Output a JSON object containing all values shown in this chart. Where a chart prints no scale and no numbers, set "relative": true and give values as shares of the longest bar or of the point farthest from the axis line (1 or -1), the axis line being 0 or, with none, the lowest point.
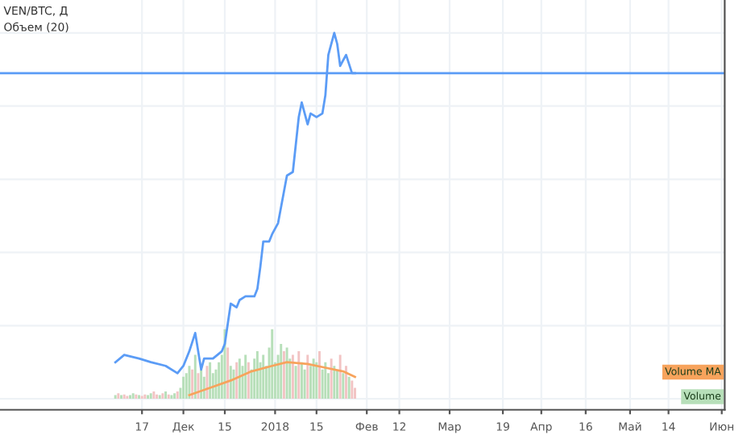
{
  "chart_data": {
    "type": "line",
    "title": "VEN/BTC, Д",
    "subtitle": "Объем (20)",
    "relative": true,
    "grid": true,
    "tick_labels": "x",
    "legend": false,
    "xlim": [
      "2017-09-30",
      "2018-06-02"
    ],
    "xticks": [
      {
        "value": "2017-11-17",
        "label": "17"
      },
      {
        "value": "2017-12-01",
        "label": "Дек"
      },
      {
        "value": "2017-12-15",
        "label": "15"
      },
      {
        "value": "2018-01-01",
        "label": "2018"
      },
      {
        "value": "2018-01-15",
        "label": "15"
      },
      {
        "value": "2018-02-01",
        "label": "Фев"
      },
      {
        "value": "2018-02-12",
        "label": "12"
      },
      {
        "value": "2018-03-01",
        "label": "Мар"
      },
      {
        "value": "2018-03-19",
        "label": "19"
      },
      {
        "value": "2018-04-01",
        "label": "Апр"
      },
      {
        "value": "2018-04-16",
        "label": "16"
      },
      {
        "value": "2018-05-01",
        "label": "Май"
      },
      {
        "value": "2018-05-14",
        "label": "14"
      },
      {
        "value": "2018-06-01",
        "label": "Июн"
      }
    ],
    "ref_lines": [
      {
        "axis": "y",
        "value": 0.89,
        "color": "#5b9cf6"
      }
    ],
    "series": [
      {
        "type": "bar",
        "name": "Volume",
        "color": "#b7dfb9",
        "x": [
          "2017-11-08",
          "2017-11-09",
          "2017-11-10",
          "2017-11-11",
          "2017-11-12",
          "2017-11-13",
          "2017-11-14",
          "2017-11-15",
          "2017-11-16",
          "2017-11-17",
          "2017-11-18",
          "2017-11-19",
          "2017-11-20",
          "2017-11-21",
          "2017-11-22",
          "2017-11-23",
          "2017-11-24",
          "2017-11-25",
          "2017-11-26",
          "2017-11-27",
          "2017-11-28",
          "2017-11-29",
          "2017-11-30",
          "2017-12-01",
          "2017-12-02",
          "2017-12-03",
          "2017-12-04",
          "2017-12-05",
          "2017-12-06",
          "2017-12-07",
          "2017-12-08",
          "2017-12-09",
          "2017-12-10",
          "2017-12-11",
          "2017-12-12",
          "2017-12-13",
          "2017-12-14",
          "2017-12-15",
          "2017-12-16",
          "2017-12-17",
          "2017-12-18",
          "2017-12-19",
          "2017-12-20",
          "2017-12-21",
          "2017-12-22",
          "2017-12-23",
          "2017-12-24",
          "2017-12-25",
          "2017-12-26",
          "2017-12-27",
          "2017-12-28",
          "2017-12-29",
          "2017-12-30",
          "2017-12-31",
          "2018-01-01",
          "2018-01-02",
          "2018-01-03",
          "2018-01-04",
          "2018-01-05",
          "2018-01-06",
          "2018-01-07",
          "2018-01-08",
          "2018-01-09",
          "2018-01-10",
          "2018-01-11",
          "2018-01-12",
          "2018-01-13",
          "2018-01-14",
          "2018-01-15",
          "2018-01-16",
          "2018-01-17",
          "2018-01-18",
          "2018-01-19",
          "2018-01-20",
          "2018-01-21",
          "2018-01-22",
          "2018-01-23",
          "2018-01-24",
          "2018-01-25",
          "2018-01-26",
          "2018-01-27",
          "2018-01-28"
        ],
        "values": [
          0.01,
          0.015,
          0.01,
          0.012,
          0.008,
          0.01,
          0.015,
          0.012,
          0.01,
          0.008,
          0.012,
          0.01,
          0.015,
          0.02,
          0.012,
          0.01,
          0.015,
          0.02,
          0.012,
          0.01,
          0.015,
          0.02,
          0.03,
          0.06,
          0.07,
          0.09,
          0.08,
          0.12,
          0.07,
          0.08,
          0.06,
          0.09,
          0.1,
          0.07,
          0.08,
          0.1,
          0.12,
          0.19,
          0.14,
          0.09,
          0.08,
          0.1,
          0.11,
          0.09,
          0.12,
          0.1,
          0.08,
          0.11,
          0.13,
          0.1,
          0.12,
          0.09,
          0.14,
          0.19,
          0.1,
          0.12,
          0.15,
          0.13,
          0.14,
          0.11,
          0.12,
          0.09,
          0.13,
          0.1,
          0.08,
          0.12,
          0.09,
          0.11,
          0.1,
          0.13,
          0.08,
          0.1,
          0.07,
          0.11,
          0.09,
          0.08,
          0.12,
          0.07,
          0.09,
          0.06,
          0.05,
          0.03
        ],
        "colors": [
          "#b7dfb9",
          "#f2c4c4",
          "#b7dfb9",
          "#f2c4c4",
          "#f2c4c4",
          "#b7dfb9",
          "#b7dfb9",
          "#f2c4c4",
          "#b7dfb9",
          "#f2c4c4",
          "#f2c4c4",
          "#b7dfb9",
          "#b7dfb9",
          "#f2c4c4",
          "#f2c4c4",
          "#b7dfb9",
          "#f2c4c4",
          "#b7dfb9",
          "#f2c4c4",
          "#b7dfb9",
          "#b7dfb9",
          "#f2c4c4",
          "#b7dfb9",
          "#b7dfb9",
          "#b7dfb9",
          "#b7dfb9",
          "#f2c4c4",
          "#b7dfb9",
          "#f2c4c4",
          "#b7dfb9",
          "#b7dfb9",
          "#f2c4c4",
          "#b7dfb9",
          "#b7dfb9",
          "#b7dfb9",
          "#b7dfb9",
          "#b7dfb9",
          "#b7dfb9",
          "#f2c4c4",
          "#b7dfb9",
          "#b7dfb9",
          "#f2c4c4",
          "#b7dfb9",
          "#b7dfb9",
          "#b7dfb9",
          "#f2c4c4",
          "#b7dfb9",
          "#b7dfb9",
          "#b7dfb9",
          "#b7dfb9",
          "#b7dfb9",
          "#b7dfb9",
          "#b7dfb9",
          "#b7dfb9",
          "#b7dfb9",
          "#b7dfb9",
          "#b7dfb9",
          "#f2c4c4",
          "#b7dfb9",
          "#b7dfb9",
          "#f2c4c4",
          "#b7dfb9",
          "#f2c4c4",
          "#b7dfb9",
          "#b7dfb9",
          "#f2c4c4",
          "#b7dfb9",
          "#b7dfb9",
          "#b7dfb9",
          "#f2c4c4",
          "#b7dfb9",
          "#b7dfb9",
          "#b7dfb9",
          "#f2c4c4",
          "#b7dfb9",
          "#b7dfb9",
          "#f2c4c4",
          "#b7dfb9",
          "#f2c4c4",
          "#b7dfb9",
          "#f2c4c4",
          "#f2c4c4"
        ]
      },
      {
        "name": "Volume MA",
        "color": "#f7a35c",
        "x": [
          "2017-12-03",
          "2017-12-10",
          "2017-12-17",
          "2017-12-24",
          "2017-12-31",
          "2018-01-05",
          "2018-01-12",
          "2018-01-18",
          "2018-01-24",
          "2018-01-28"
        ],
        "values": [
          0.01,
          0.03,
          0.05,
          0.075,
          0.09,
          0.1,
          0.095,
          0.085,
          0.075,
          0.06
        ]
      },
      {
        "color": "#5b9cf6",
        "x": [
          "2017-11-08",
          "2017-11-11",
          "2017-11-16",
          "2017-11-20",
          "2017-11-25",
          "2017-11-29",
          "2017-12-01",
          "2017-12-03",
          "2017-12-05",
          "2017-12-07",
          "2017-12-08",
          "2017-12-11",
          "2017-12-14",
          "2017-12-15",
          "2017-12-17",
          "2017-12-19",
          "2017-12-20",
          "2017-12-22",
          "2017-12-23",
          "2017-12-25",
          "2017-12-26",
          "2017-12-27",
          "2017-12-28",
          "2017-12-30",
          "2017-12-31",
          "2018-01-02",
          "2018-01-05",
          "2018-01-07",
          "2018-01-09",
          "2018-01-10",
          "2018-01-12",
          "2018-01-13",
          "2018-01-15",
          "2018-01-17",
          "2018-01-18",
          "2018-01-19",
          "2018-01-21",
          "2018-01-22",
          "2018-01-23",
          "2018-01-25",
          "2018-01-27",
          "2018-01-28"
        ],
        "values": [
          0.1,
          0.12,
          0.11,
          0.1,
          0.09,
          0.07,
          0.09,
          0.13,
          0.18,
          0.08,
          0.11,
          0.11,
          0.13,
          0.15,
          0.26,
          0.25,
          0.27,
          0.28,
          0.28,
          0.28,
          0.3,
          0.36,
          0.43,
          0.43,
          0.45,
          0.48,
          0.61,
          0.62,
          0.77,
          0.81,
          0.75,
          0.78,
          0.77,
          0.78,
          0.83,
          0.94,
          1.0,
          0.97,
          0.91,
          0.94,
          0.89,
          0.89
        ]
      }
    ]
  }
}
